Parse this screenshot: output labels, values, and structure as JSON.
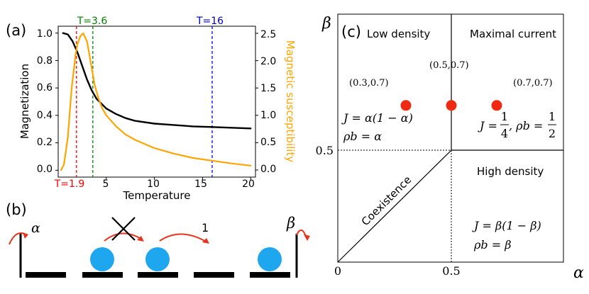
{
  "chart_data": [
    {
      "panel": "(a)",
      "type": "line",
      "xlabel": "Temperature",
      "ylabel_left": "Magnetization",
      "ylabel_right": "Magnetic susceptibility",
      "xlim": [
        0,
        20.5
      ],
      "ylim_left": [
        -0.05,
        1.05
      ],
      "ylim_right": [
        -0.13,
        2.63
      ],
      "xticks": [
        "5",
        "10",
        "15",
        "20"
      ],
      "yticks_left": [
        "0.0",
        "0.2",
        "0.4",
        "0.6",
        "0.8",
        "1.0"
      ],
      "yticks_right": [
        "0.0",
        "0.5",
        "1.0",
        "1.5",
        "2.0",
        "2.5"
      ],
      "series": [
        {
          "axis": "left",
          "color": "#000000",
          "x": [
            0.5,
            1.0,
            1.5,
            2.0,
            2.5,
            3.0,
            3.5,
            4.0,
            5.0,
            6.0,
            7.0,
            8.0,
            10.0,
            12.0,
            14.0,
            16.0,
            18.0,
            20.0
          ],
          "values": [
            1.0,
            0.99,
            0.94,
            0.86,
            0.76,
            0.66,
            0.58,
            0.52,
            0.45,
            0.41,
            0.38,
            0.36,
            0.34,
            0.33,
            0.32,
            0.315,
            0.31,
            0.305
          ]
        },
        {
          "axis": "right",
          "color": "#ffa500",
          "x": [
            0.3,
            0.6,
            1.0,
            1.4,
            1.8,
            2.0,
            2.3,
            2.6,
            3.0,
            3.4,
            3.8,
            4.2,
            4.6,
            5.0,
            6.0,
            7.0,
            8.0,
            10.0,
            12.0,
            14.0,
            16.0,
            18.0,
            20.0
          ],
          "values": [
            0.0,
            0.1,
            0.6,
            1.5,
            2.1,
            2.3,
            2.45,
            2.5,
            2.35,
            1.95,
            1.55,
            1.3,
            1.12,
            1.0,
            0.8,
            0.65,
            0.55,
            0.4,
            0.3,
            0.22,
            0.17,
            0.12,
            0.08
          ]
        }
      ],
      "vlines": [
        {
          "x": 1.9,
          "color": "#ff0000",
          "label": "T=1.9",
          "pos": "bottom"
        },
        {
          "x": 3.6,
          "color": "#008000",
          "label": "T=3.6",
          "pos": "top"
        },
        {
          "x": 16,
          "color": "#0000ff",
          "label": "T=16",
          "pos": "top"
        }
      ]
    },
    {
      "panel": "(c)",
      "type": "scatter",
      "xlabel": "α",
      "ylabel": "β",
      "xticks": [
        "0",
        "0.5"
      ],
      "yticks": [
        "0.5"
      ],
      "xlim": [
        0,
        1
      ],
      "ylim": [
        0,
        1
      ],
      "point_color": "#ee2a12",
      "points": [
        {
          "x": 0.3,
          "y": 0.7,
          "label": "(0.3,0.7)"
        },
        {
          "x": 0.5,
          "y": 0.7,
          "label": "(0.5,0.7)"
        },
        {
          "x": 0.7,
          "y": 0.7,
          "label": "(0.7,0.7)"
        }
      ],
      "regions": {
        "low_density": "Low density",
        "maximal_current": "Maximal current",
        "high_density": "High density",
        "coexistence": "Coexistence"
      },
      "formulas": {
        "low_j": "J = α(1 − α)",
        "low_rho": "ρb = α",
        "max_j_prefix": "J =",
        "max_j_num": "1",
        "max_j_den": "4",
        "max_rho_prefix": ", ρb =",
        "max_rho_num": "1",
        "max_rho_den": "2",
        "high_j": "J = β(1 − β)",
        "high_rho": "ρb = β"
      }
    }
  ],
  "panel_b": {
    "label": "(b)",
    "alpha": "α",
    "beta": "β",
    "hop_rate": "1",
    "particle_color": "#1ea7ef",
    "arrow_color": "#e8331c",
    "sites": [
      false,
      true,
      true,
      false,
      true
    ]
  }
}
